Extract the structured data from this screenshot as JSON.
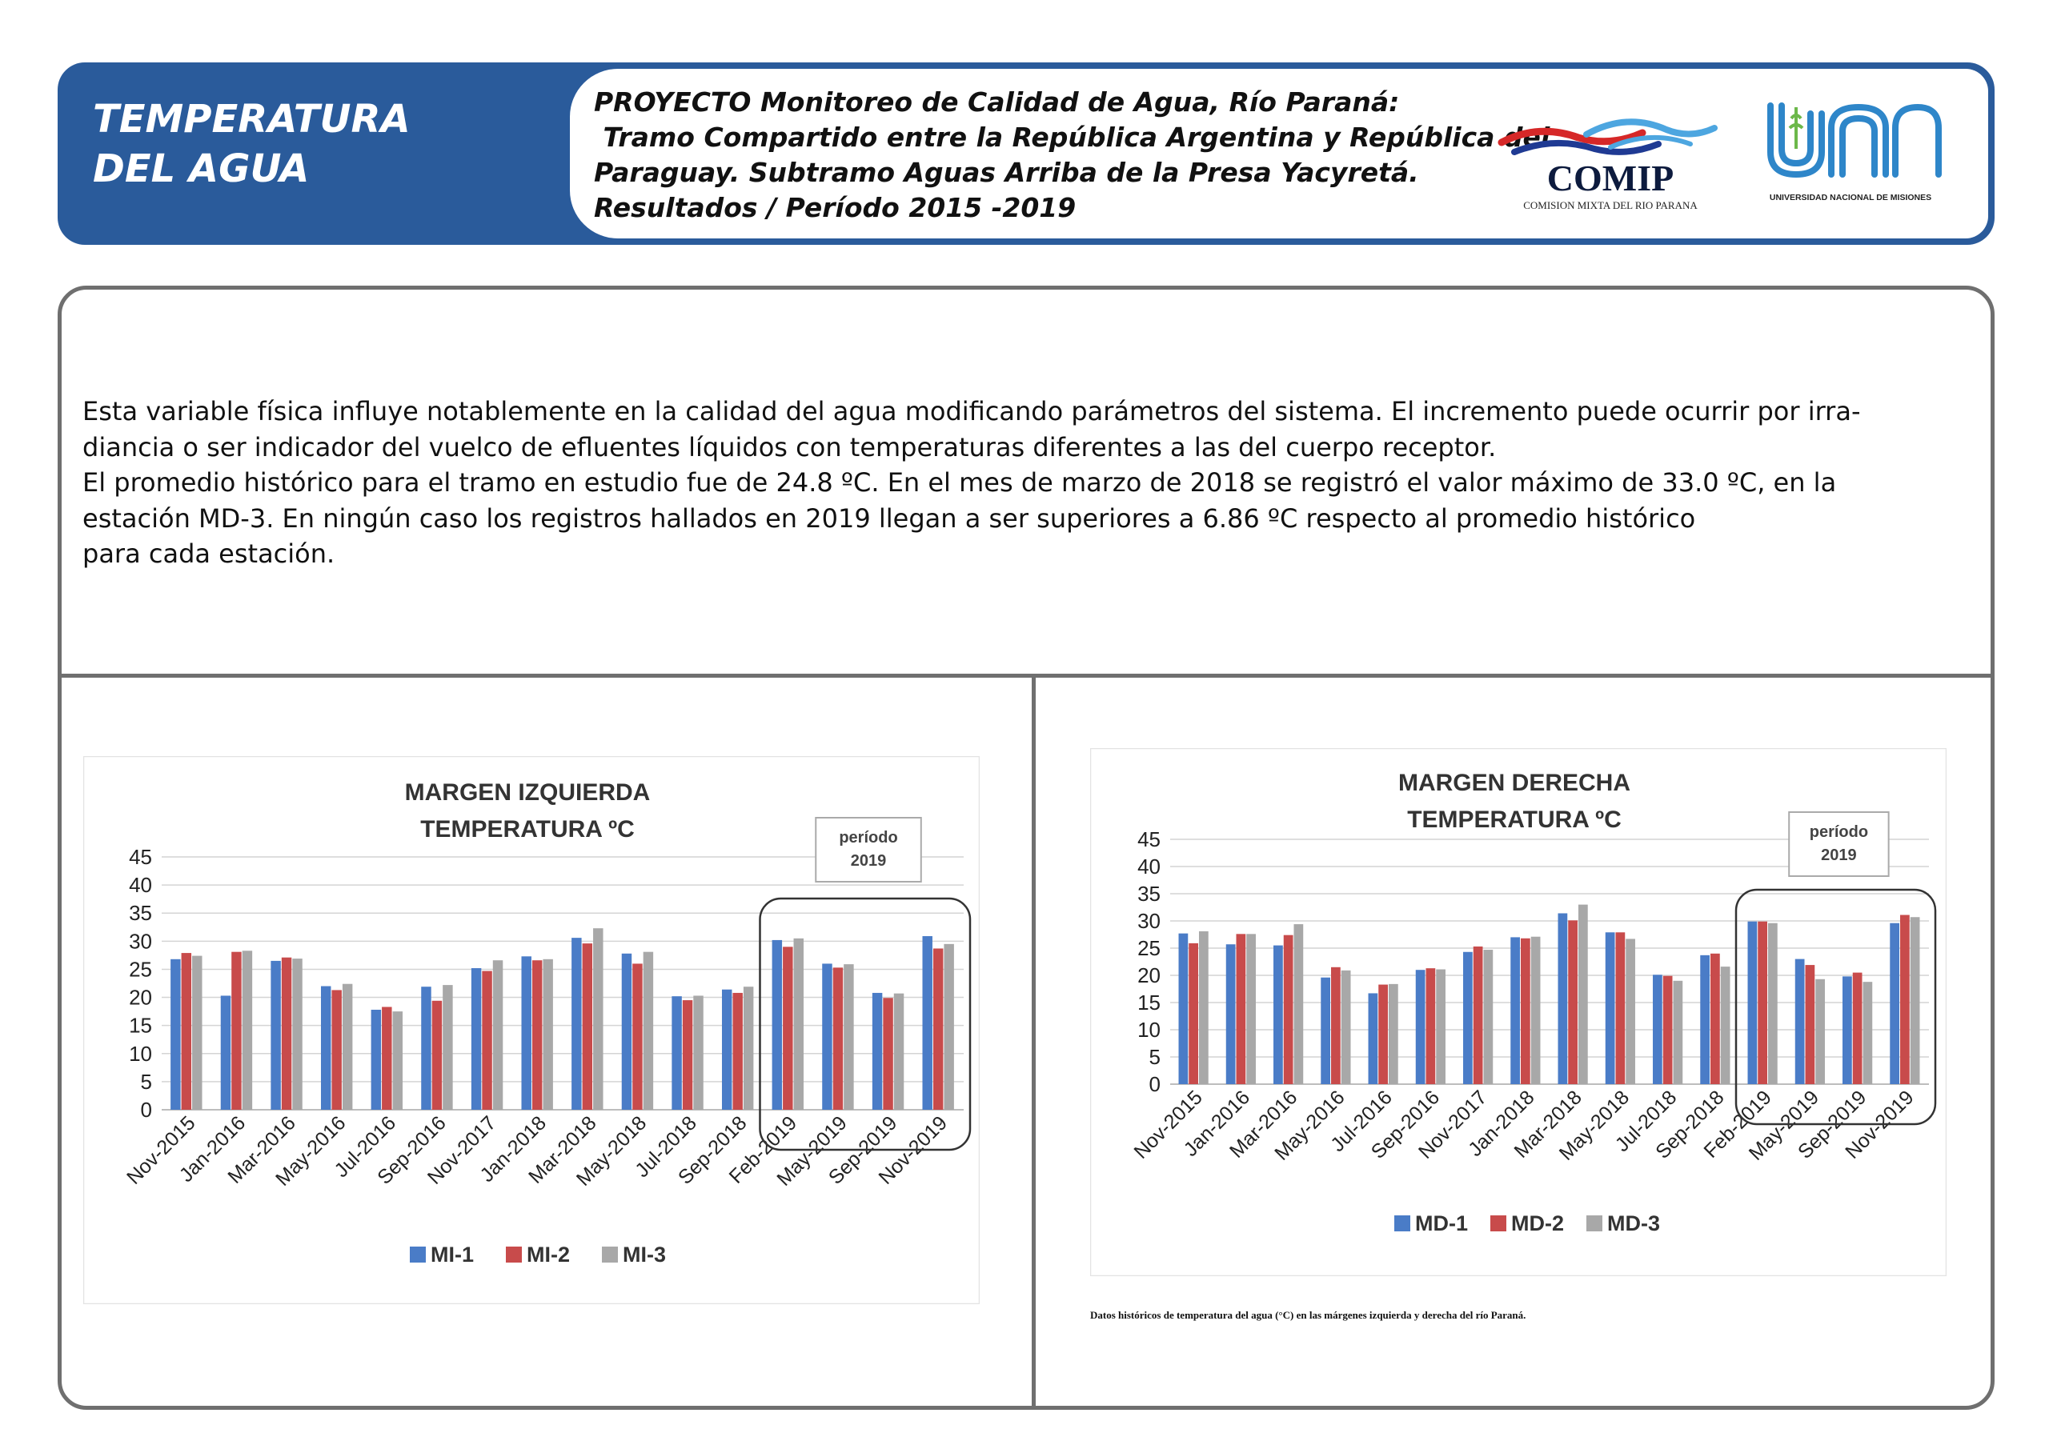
{
  "header": {
    "title_lines": [
      "TEMPERATURA",
      "DEL AGUA"
    ],
    "project_lines": [
      "PROYECTO Monitoreo de Calidad de Agua, Río Paraná:",
      " Tramo Compartido entre la República Argentina y República del",
      "Paraguay. Subtramo Aguas Arriba de la Presa Yacyretá.",
      "Resultados / Período 2015 -2019"
    ],
    "logo_comip": {
      "name": "COMIP",
      "subtitle": "COMISION MIXTA DEL RIO PARANA"
    },
    "logo_unm": {
      "name": "UNaM",
      "subtitle": "UNIVERSIDAD NACIONAL DE MISIONES"
    }
  },
  "description": [
    "Esta variable física influye notablemente en la calidad del agua modificando parámetros del sistema. El incremento puede ocurrir por irra-",
    "diancia o ser indicador del vuelco de efluentes líquidos con temperaturas diferentes a las del cuerpo receptor.",
    "El promedio histórico para el tramo en estudio fue de 24.8 ºC. En el mes de marzo de 2018 se registró el valor máximo de 33.0 ºC, en la",
    "estación MD-3.  En ningún caso los registros hallados en 2019 llegan a ser superiores a 6.86 ºC respecto al promedio histórico",
    "para cada estación."
  ],
  "caption": "Datos históricos de temperatura del agua (°C) en las márgenes izquierda y derecha del río Paraná.",
  "colors": {
    "series1": "#4a7cc7",
    "series2": "#c84b4b",
    "series3": "#a8a8a8",
    "header": "#2a5b9b"
  },
  "chart_data": [
    {
      "type": "bar",
      "title": [
        "MARGEN IZQUIERDA",
        "TEMPERATURA ºC"
      ],
      "annotation": [
        "período",
        "2019"
      ],
      "categories": [
        "Nov-2015",
        "Jan-2016",
        "Mar-2016",
        "May-2016",
        "Jul-2016",
        "Sep-2016",
        "Nov-2017",
        "Jan-2018",
        "Mar-2018",
        "May-2018",
        "Jul-2018",
        "Sep-2018",
        "Feb-2019",
        "May-2019",
        "Sep-2019",
        "Nov-2019"
      ],
      "yticks": [
        0,
        5,
        10,
        15,
        20,
        25,
        30,
        35,
        40,
        45
      ],
      "ylim": [
        0,
        45
      ],
      "highlight_categories": [
        "Feb-2019",
        "May-2019",
        "Sep-2019",
        "Nov-2019"
      ],
      "legend_position": "bottom",
      "series": [
        {
          "name": "MI-1",
          "values": [
            26.8,
            20.3,
            26.5,
            22.0,
            17.8,
            21.9,
            25.2,
            27.3,
            30.6,
            27.8,
            20.2,
            21.4,
            30.2,
            26.0,
            20.8,
            30.9
          ]
        },
        {
          "name": "MI-2",
          "values": [
            27.9,
            28.1,
            27.1,
            21.3,
            18.3,
            19.4,
            24.7,
            26.6,
            29.6,
            26.0,
            19.5,
            20.8,
            29.0,
            25.3,
            19.9,
            28.7
          ]
        },
        {
          "name": "MI-3",
          "values": [
            27.4,
            28.3,
            26.9,
            22.4,
            17.5,
            22.2,
            26.6,
            26.8,
            32.3,
            28.1,
            20.3,
            21.9,
            30.5,
            25.9,
            20.7,
            29.5
          ]
        }
      ]
    },
    {
      "type": "bar",
      "title": [
        "MARGEN DERECHA",
        "TEMPERATURA ºC"
      ],
      "annotation": [
        "período",
        "2019"
      ],
      "categories": [
        "Nov-2015",
        "Jan-2016",
        "Mar-2016",
        "May-2016",
        "Jul-2016",
        "Sep-2016",
        "Nov-2017",
        "Jan-2018",
        "Mar-2018",
        "May-2018",
        "Jul-2018",
        "Sep-2018",
        "Feb-2019",
        "May-2019",
        "Sep-2019",
        "Nov-2019"
      ],
      "yticks": [
        0,
        5,
        10,
        15,
        20,
        25,
        30,
        35,
        40,
        45
      ],
      "ylim": [
        0,
        45
      ],
      "highlight_categories": [
        "Feb-2019",
        "May-2019",
        "Sep-2019",
        "Nov-2019"
      ],
      "legend_position": "bottom",
      "series": [
        {
          "name": "MD-1",
          "values": [
            27.7,
            25.7,
            25.5,
            19.6,
            16.7,
            21.0,
            24.3,
            27.0,
            31.4,
            27.9,
            20.1,
            23.7,
            29.9,
            23.0,
            19.8,
            29.6
          ]
        },
        {
          "name": "MD-2",
          "values": [
            25.9,
            27.6,
            27.4,
            21.5,
            18.3,
            21.3,
            25.3,
            26.8,
            30.1,
            27.9,
            19.9,
            24.0,
            29.9,
            21.9,
            20.5,
            31.1
          ]
        },
        {
          "name": "MD-3",
          "values": [
            28.1,
            27.6,
            29.4,
            20.9,
            18.4,
            21.1,
            24.7,
            27.1,
            33.0,
            26.7,
            19.0,
            21.6,
            29.6,
            19.3,
            18.8,
            30.7
          ]
        }
      ]
    }
  ]
}
